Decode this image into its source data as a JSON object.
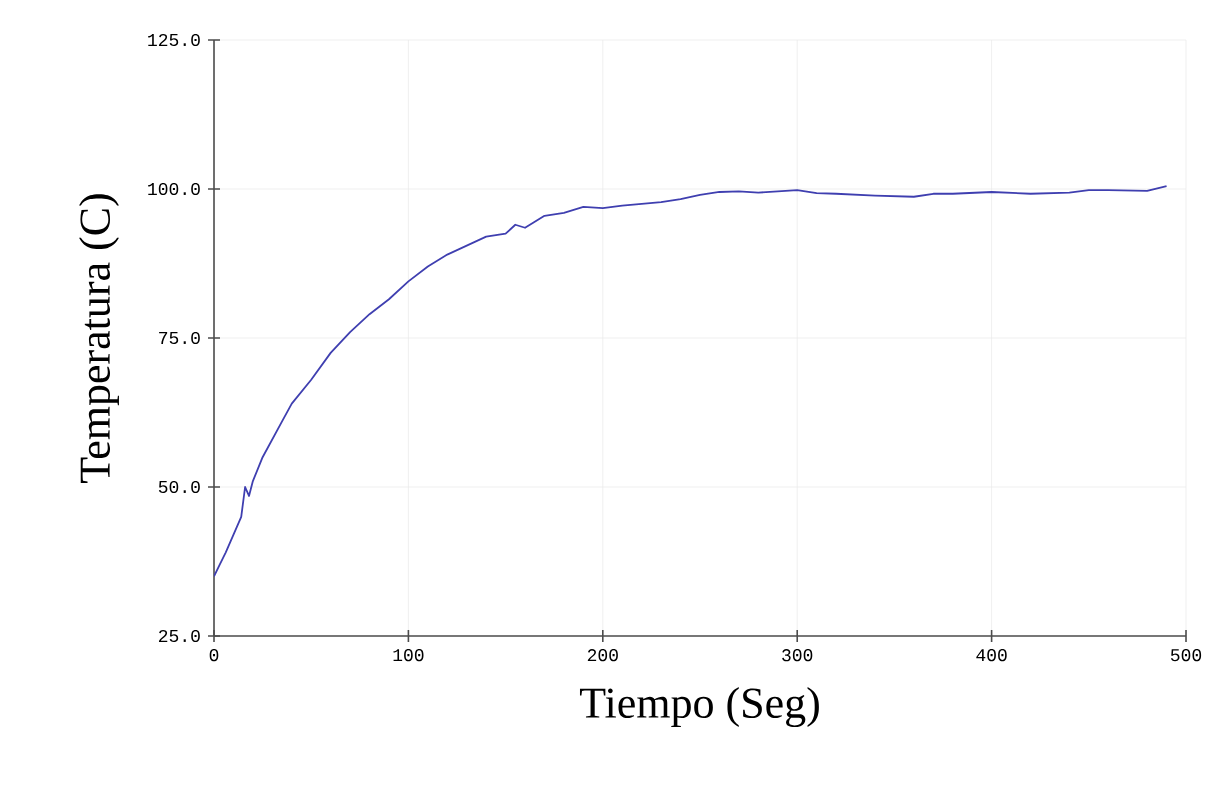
{
  "chart_data": {
    "type": "line",
    "xlabel": "Tiempo (Seg)",
    "ylabel": "Temperatura (C)",
    "xlim": [
      0,
      500
    ],
    "ylim": [
      25,
      125
    ],
    "xticks": [
      0,
      100,
      200,
      300,
      400,
      500
    ],
    "yticks": [
      {
        "value": 25,
        "label": "25.0"
      },
      {
        "value": 50,
        "label": "50.0"
      },
      {
        "value": 75,
        "label": "75.0"
      },
      {
        "value": 100,
        "label": "100.0"
      },
      {
        "value": 125,
        "label": "125.0"
      }
    ],
    "grid": true,
    "marker": "none",
    "line_style": "solid",
    "series": [
      {
        "color": "#3f3fb0",
        "x": [
          0,
          3,
          6,
          10,
          14,
          16,
          18,
          20,
          25,
          30,
          35,
          40,
          50,
          60,
          70,
          80,
          90,
          100,
          110,
          120,
          130,
          140,
          150,
          155,
          160,
          170,
          180,
          190,
          200,
          210,
          220,
          230,
          240,
          250,
          260,
          270,
          280,
          290,
          300,
          310,
          320,
          340,
          360,
          370,
          380,
          400,
          420,
          440,
          450,
          460,
          480,
          490
        ],
        "values": [
          35,
          37,
          39,
          42,
          45,
          50,
          48.5,
          51,
          55,
          58,
          61,
          64,
          68,
          72.5,
          76,
          79,
          81.5,
          84.5,
          87,
          89,
          90.5,
          92,
          92.5,
          94,
          93.5,
          95.5,
          96,
          97,
          96.8,
          97.2,
          97.5,
          97.8,
          98.3,
          99,
          99.5,
          99.6,
          99.4,
          99.6,
          99.8,
          99.3,
          99.2,
          98.9,
          98.7,
          99.2,
          99.2,
          99.5,
          99.2,
          99.4,
          99.8,
          99.8,
          99.7,
          100.5
        ]
      }
    ]
  }
}
